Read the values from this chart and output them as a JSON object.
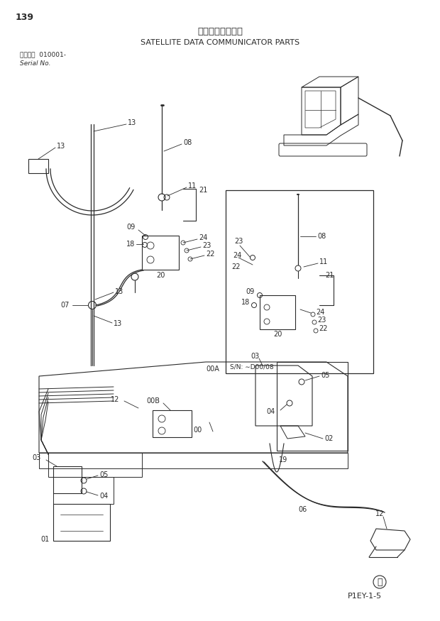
{
  "title_jp": "衛星通信端末用品",
  "title_en": "SATELLITE DATA COMMUNICATOR PARTS",
  "page_num": "139",
  "figure_code": "P1EY-1-5",
  "bg_color": "#ffffff",
  "line_color": "#2a2a2a",
  "text_color": "#2a2a2a",
  "inset_sn": "S/N: ∼D00/08"
}
